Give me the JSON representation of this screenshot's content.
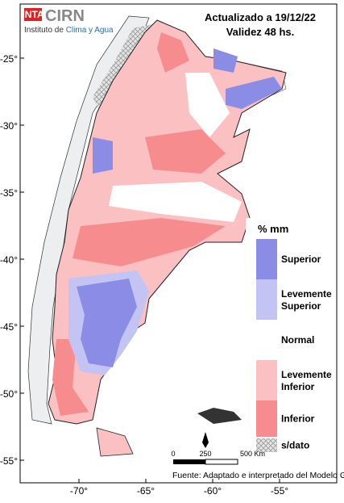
{
  "header": {
    "logo_inta": "INTA",
    "logo_cirn": "CIRN",
    "institute_prefix": "Instituto de ",
    "institute_name": "Clima y Agua",
    "updated": "Actualizado a 19/12/22",
    "validity": "Validez 48 hs."
  },
  "axes": {
    "lat_ticks": [
      "-25°",
      "-30°",
      "-35°",
      "-40°",
      "-45°",
      "-50°",
      "-55°"
    ],
    "lon_ticks": [
      "-70°",
      "-65°",
      "-60°",
      "-55°"
    ]
  },
  "legend": {
    "title": "% mm",
    "items": [
      {
        "label": "Superior",
        "color": "#8a8ce6"
      },
      {
        "label": "Levemente Superior",
        "color": "#c3c4f3"
      },
      {
        "label": "Normal",
        "color": "#ffffff"
      },
      {
        "label": "Levemente Inferior",
        "color": "#fbc0c2"
      },
      {
        "label": "Inferior",
        "color": "#f78c8e"
      },
      {
        "label": "s/dato",
        "color": "hatch"
      }
    ]
  },
  "scale_bar": {
    "labels": [
      "0",
      "250",
      "500 Km"
    ]
  },
  "source": "Fuente: Adaptado e interpretado del Modelo GFS del COLA-IGES, USA."
}
